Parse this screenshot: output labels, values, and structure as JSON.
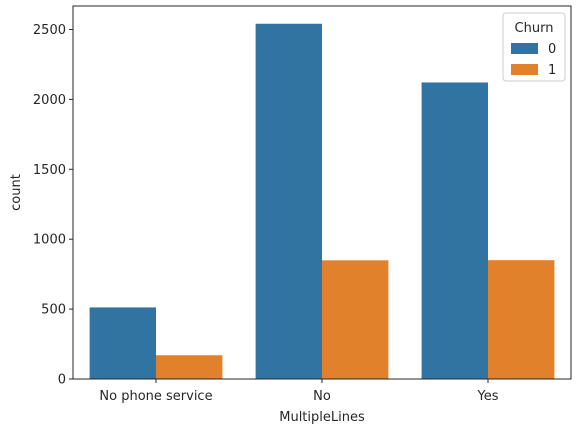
{
  "chart_data": {
    "type": "bar",
    "title": "",
    "xlabel": "MultipleLines",
    "ylabel": "count",
    "categories": [
      "No phone service",
      "No",
      "Yes"
    ],
    "series": [
      {
        "name": "0",
        "values": [
          512,
          2541,
          2121
        ]
      },
      {
        "name": "1",
        "values": [
          170,
          849,
          850
        ]
      }
    ],
    "colors": [
      "#3274a1",
      "#e1812c"
    ],
    "ylim": [
      0,
      2668
    ],
    "yticks": [
      0,
      500,
      1000,
      1500,
      2000,
      2500
    ],
    "legend": {
      "title": "Churn",
      "position": "top-right"
    },
    "grid": false
  }
}
